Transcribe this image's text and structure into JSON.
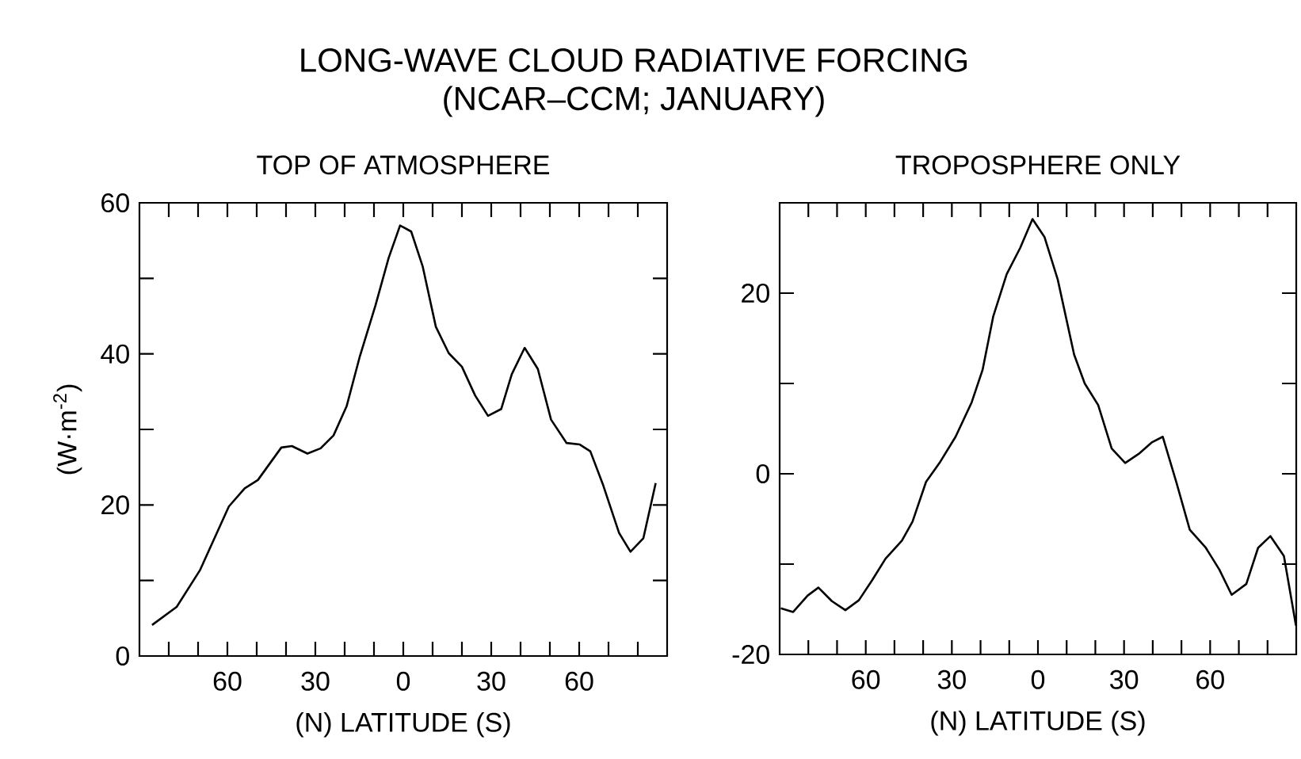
{
  "chart_data": [
    {
      "type": "line",
      "title": "TOP OF ATMOSPHERE",
      "annotations": [
        "LONG-WAVE CLOUD RADIATIVE FORCING",
        "(NCAR–CCM; JANUARY)"
      ],
      "xlabel": "(N)   LATITUDE   (S)",
      "ylabel": "(W·m$^{-2}$)",
      "color": "#000000",
      "x": [
        85.7,
        77.3,
        69.3,
        59.5,
        54.1,
        49.6,
        41.6,
        38.0,
        32.7,
        28.2,
        23.8,
        19.3,
        14.8,
        9.5,
        5.0,
        1.1,
        -2.7,
        -6.6,
        -11.1,
        -15.5,
        -20.0,
        -24.5,
        -28.9,
        -33.4,
        -37.0,
        -41.4,
        -45.9,
        -50.4,
        -55.7,
        -60.2,
        -63.8,
        -68.2,
        -73.6,
        -77.5,
        -81.9,
        -86.1
      ],
      "values": [
        4.1,
        6.5,
        11.4,
        19.8,
        22.2,
        23.3,
        27.6,
        27.8,
        26.8,
        27.5,
        29.2,
        33.1,
        39.7,
        46.4,
        52.7,
        57.0,
        56.2,
        51.6,
        43.6,
        40.1,
        38.3,
        34.5,
        31.8,
        32.7,
        37.3,
        40.8,
        38.0,
        31.3,
        28.2,
        28.0,
        27.1,
        22.6,
        16.3,
        13.8,
        15.6,
        22.9
      ],
      "xlim": [
        90,
        -90
      ],
      "xticks": [
        {
          "value": 80,
          "label": null
        },
        {
          "value": 70,
          "label": null
        },
        60,
        {
          "value": 50,
          "label": null
        },
        {
          "value": 40,
          "label": null
        },
        30,
        {
          "value": 20,
          "label": null
        },
        {
          "value": 10,
          "label": null
        },
        0,
        {
          "value": -10,
          "label": null
        },
        {
          "value": -20,
          "label": null
        },
        {
          "value": -30,
          "label": "30"
        },
        {
          "value": -40,
          "label": null
        },
        {
          "value": -50,
          "label": null
        },
        {
          "value": -60,
          "label": "60"
        },
        {
          "value": -70,
          "label": null
        },
        {
          "value": -80,
          "label": null
        }
      ],
      "ylim": [
        0,
        60
      ],
      "yticks": [
        0,
        {
          "value": 10,
          "label": null
        },
        20,
        {
          "value": 30,
          "label": null
        },
        40,
        {
          "value": 50,
          "label": null
        },
        60
      ]
    },
    {
      "type": "line",
      "title": "TROPOSPHERE ONLY",
      "xlabel": "(N)   LATITUDE   (S)",
      "color": "#000000",
      "x": [
        89.6,
        85.3,
        80.3,
        76.5,
        71.8,
        67.1,
        62.4,
        57.8,
        53.1,
        47.4,
        43.7,
        39.0,
        34.3,
        28.7,
        23.1,
        19.3,
        15.6,
        10.9,
        6.2,
        1.9,
        -2.3,
        -6.9,
        -12.6,
        -16.3,
        -21.0,
        -25.7,
        -30.4,
        -35.1,
        -39.8,
        -43.5,
        -48.2,
        -52.9,
        -58.5,
        -63.2,
        -67.5,
        -72.6,
        -76.7,
        -81.0,
        -85.7,
        -89.9
      ],
      "values": [
        -14.9,
        -15.3,
        -13.5,
        -12.6,
        -14.1,
        -15.1,
        -14.0,
        -11.8,
        -9.4,
        -7.4,
        -5.3,
        -0.9,
        1.2,
        4.1,
        7.9,
        11.5,
        17.4,
        22.1,
        25.0,
        28.2,
        26.2,
        21.5,
        13.2,
        10.0,
        7.6,
        2.8,
        1.2,
        2.2,
        3.5,
        4.1,
        -0.9,
        -6.2,
        -8.2,
        -10.6,
        -13.4,
        -12.2,
        -8.2,
        -6.9,
        -9.1,
        -16.8
      ],
      "xlim": [
        90,
        -90
      ],
      "xticks": [
        {
          "value": 80,
          "label": null
        },
        {
          "value": 70,
          "label": null
        },
        60,
        {
          "value": 50,
          "label": null
        },
        {
          "value": 40,
          "label": null
        },
        30,
        {
          "value": 20,
          "label": null
        },
        {
          "value": 10,
          "label": null
        },
        0,
        {
          "value": -10,
          "label": null
        },
        {
          "value": -20,
          "label": null
        },
        {
          "value": -30,
          "label": "30"
        },
        {
          "value": -40,
          "label": null
        },
        {
          "value": -50,
          "label": null
        },
        {
          "value": -60,
          "label": "60"
        },
        {
          "value": -70,
          "label": null
        },
        {
          "value": -80,
          "label": null
        }
      ],
      "ylim": [
        -20,
        30
      ],
      "yticks": [
        -20,
        {
          "value": -10,
          "label": null
        },
        0,
        {
          "value": 10,
          "label": null
        },
        20
      ]
    }
  ]
}
